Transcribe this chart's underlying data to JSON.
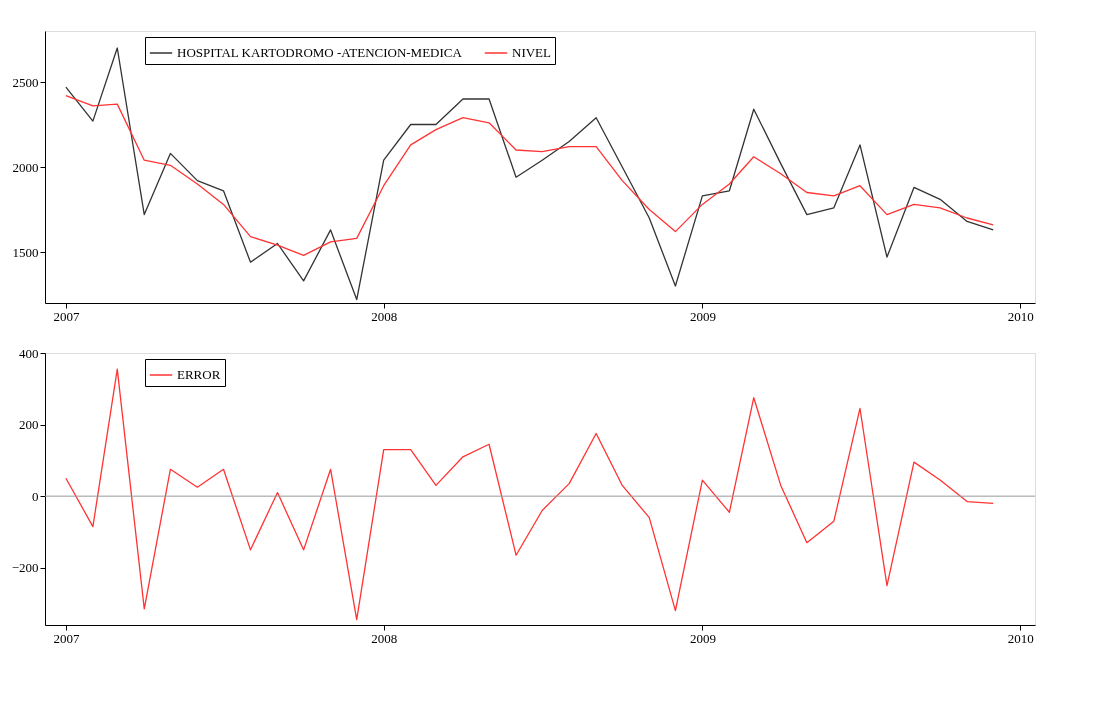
{
  "chart_data": [
    {
      "type": "line",
      "x": [
        "2007-01",
        "2007-02",
        "2007-03",
        "2007-04",
        "2007-05",
        "2007-06",
        "2007-07",
        "2007-08",
        "2007-09",
        "2007-10",
        "2007-11",
        "2007-12",
        "2008-01",
        "2008-02",
        "2008-03",
        "2008-04",
        "2008-05",
        "2008-06",
        "2008-07",
        "2008-08",
        "2008-09",
        "2008-10",
        "2008-11",
        "2008-12",
        "2009-01",
        "2009-02",
        "2009-03",
        "2009-04",
        "2009-05",
        "2009-06",
        "2009-07",
        "2009-08",
        "2009-09",
        "2009-10",
        "2009-11",
        "2009-12"
      ],
      "series": [
        {
          "name": "HOSPITAL KARTODROMO -ATENCION-MEDICA",
          "color": "#333333",
          "values": [
            2470,
            2270,
            2700,
            1720,
            2080,
            1920,
            1860,
            1440,
            1550,
            1330,
            1630,
            1220,
            2040,
            2250,
            2250,
            2400,
            2400,
            1940,
            2040,
            2150,
            2290,
            2000,
            1700,
            1300,
            1830,
            1860,
            2340,
            2020,
            1720,
            1760,
            2130,
            1470,
            1880,
            1810,
            1680,
            1630
          ]
        },
        {
          "name": "NIVEL",
          "color": "#ff3333",
          "values": [
            2420,
            2360,
            2370,
            2040,
            2010,
            1900,
            1780,
            1590,
            1540,
            1480,
            1560,
            1580,
            1890,
            2130,
            2220,
            2290,
            2260,
            2100,
            2090,
            2120,
            2120,
            1920,
            1750,
            1620,
            1780,
            1900,
            2060,
            1960,
            1850,
            1830,
            1890,
            1720,
            1780,
            1760,
            1700,
            1660
          ]
        }
      ],
      "xlim": [
        "2006-12-08",
        "2010-01-18"
      ],
      "xticks": [
        "2007",
        "2008",
        "2009",
        "2010"
      ],
      "ylim": [
        1200,
        2800
      ],
      "yticks": [
        1500,
        2000,
        2500
      ],
      "legend": "top left",
      "grid": false,
      "marker": "none",
      "line_style": "solid"
    },
    {
      "type": "line",
      "x": [
        "2007-01",
        "2007-02",
        "2007-03",
        "2007-04",
        "2007-05",
        "2007-06",
        "2007-07",
        "2007-08",
        "2007-09",
        "2007-10",
        "2007-11",
        "2007-12",
        "2008-01",
        "2008-02",
        "2008-03",
        "2008-04",
        "2008-05",
        "2008-06",
        "2008-07",
        "2008-08",
        "2008-09",
        "2008-10",
        "2008-11",
        "2008-12",
        "2009-01",
        "2009-02",
        "2009-03",
        "2009-04",
        "2009-05",
        "2009-06",
        "2009-07",
        "2009-08",
        "2009-09",
        "2009-10",
        "2009-11",
        "2009-12"
      ],
      "series": [
        {
          "name": "ERROR",
          "color": "#ff3333",
          "values": [
            50,
            -85,
            355,
            -315,
            75,
            25,
            75,
            -150,
            10,
            -150,
            75,
            -345,
            130,
            130,
            30,
            110,
            145,
            -165,
            -40,
            35,
            175,
            30,
            -60,
            -320,
            45,
            -45,
            275,
            30,
            -130,
            -70,
            245,
            -250,
            95,
            45,
            -15,
            -20
          ]
        }
      ],
      "xlim": [
        "2006-12-08",
        "2010-01-18"
      ],
      "xticks": [
        "2007",
        "2008",
        "2009",
        "2010"
      ],
      "ylim": [
        -360,
        400
      ],
      "yticks": [
        -200,
        0,
        200,
        400
      ],
      "ref_lines": [
        {
          "axis": "y",
          "value": 0,
          "color": "#999999"
        }
      ],
      "legend": "top left",
      "grid": false,
      "marker": "none",
      "line_style": "solid"
    }
  ]
}
